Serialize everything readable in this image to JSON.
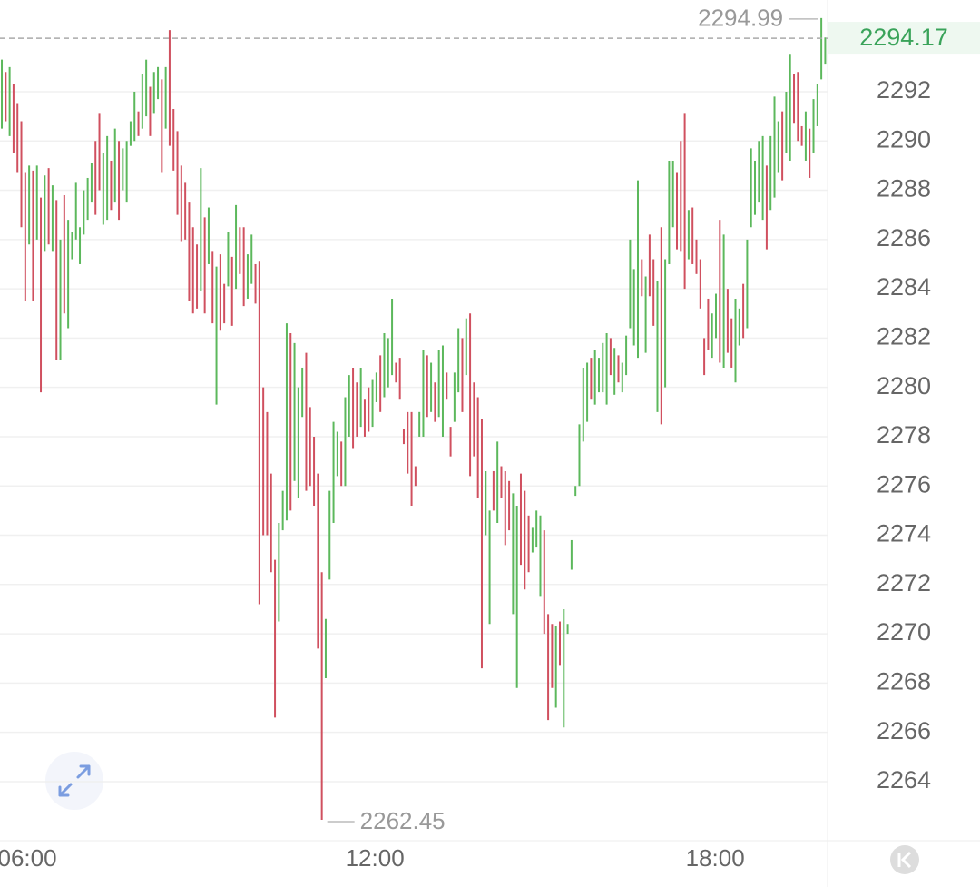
{
  "chart_data": {
    "type": "candlestick",
    "up_color": "#5cb85c",
    "down_color": "#d0505f",
    "ylim": [
      2261.64,
      2295.72
    ],
    "yticks": [
      2264,
      2266,
      2268,
      2270,
      2272,
      2274,
      2276,
      2278,
      2280,
      2282,
      2284,
      2286,
      2288,
      2290,
      2292
    ],
    "xlim": [
      -0.47,
      211.6
    ],
    "xticks": [
      {
        "value": 6.51,
        "label": "06:00"
      },
      {
        "value": 95.6,
        "label": "12:00"
      },
      {
        "value": 182.8,
        "label": "18:00"
      }
    ],
    "grid": true,
    "last_price": 2294.17,
    "max_index": 210,
    "min_index": 82,
    "high": [
      2293.3,
      2292.8,
      2293.0,
      2292.3,
      2291.5,
      2290.8,
      2288.7,
      2289.0,
      2288.8,
      2289.0,
      2287.7,
      2288.6,
      2288.9,
      2288.2,
      2287.6,
      2286.0,
      2287.8,
      2286.8,
      2286.3,
      2288.3,
      2286.5,
      2288.0,
      2288.5,
      2289.1,
      2290.0,
      2291.1,
      2289.5,
      2290.2,
      2289.2,
      2290.5,
      2290.0,
      2289.7,
      2290.0,
      2290.8,
      2292.0,
      2291.2,
      2292.7,
      2293.3,
      2292.2,
      2292.8,
      2293.0,
      2292.5,
      2293.0,
      2294.5,
      2291.3,
      2290.4,
      2289.0,
      2288.3,
      2287.5,
      2286.5,
      2285.8,
      2288.9,
      2286.9,
      2287.3,
      2285.5,
      2284.9,
      2285.4,
      2284.2,
      2286.3,
      2285.3,
      2287.4,
      2286.5,
      2286.5,
      2285.4,
      2286.2,
      2285.0,
      2285.1,
      2280.0,
      2279.0,
      2276.5,
      2273.0,
      2274.5,
      2275.8,
      2282.6,
      2282.2,
      2281.8,
      2280.0,
      2280.8,
      2281.4,
      2279.2,
      2278.0,
      2276.5,
      2272.5,
      2270.6,
      2275.8,
      2278.6,
      2278.2,
      2277.8,
      2279.6,
      2280.5,
      2280.8,
      2280.2,
      2280.8,
      2279.5,
      2280.0,
      2280.3,
      2280.6,
      2281.3,
      2282.2,
      2282.0,
      2283.6,
      2281.0,
      2281.2,
      2278.3,
      2279.0,
      2279.0,
      2276.8,
      2279.0,
      2281.5,
      2281.3,
      2281.0,
      2280.2,
      2281.5,
      2281.7,
      2280.6,
      2278.4,
      2280.6,
      2282.4,
      2282.0,
      2282.8,
      2283.0,
      2280.2,
      2279.6,
      2278.7,
      2276.6,
      2275.0,
      2276.6,
      2277.8,
      2276.8,
      2276.6,
      2276.2,
      2275.7,
      2275.2,
      2276.5,
      2275.8,
      2274.8,
      2274.3,
      2275.0,
      2274.8,
      2274.2,
      2270.8,
      2270.4,
      2270.3,
      2270.5,
      2271.0,
      2270.4,
      2273.8,
      2276.0,
      2278.5,
      2280.8,
      2281.0,
      2281.2,
      2281.5,
      2281.2,
      2281.8,
      2282.2,
      2282.0,
      2281.6,
      2281.3,
      2281.0,
      2282.1,
      2286.0,
      2284.8,
      2288.4,
      2285.2,
      2284.5,
      2286.2,
      2285.2,
      2284.3,
      2286.5,
      2285.2,
      2289.2,
      2289.2,
      2288.7,
      2290.0,
      2291.1,
      2287.2,
      2287.3,
      2286.0,
      2285.2,
      2282.0,
      2283.6,
      2283.0,
      2283.8,
      2286.8,
      2286.2,
      2284.0,
      2282.8,
      2283.6,
      2283.2,
      2284.2,
      2286.0,
      2289.7,
      2289.2,
      2290.0,
      2290.2,
      2289.0,
      2290.2,
      2291.8,
      2290.8,
      2291.2,
      2292.0,
      2293.5,
      2292.7,
      2292.8,
      2290.6,
      2291.2,
      2290.5,
      2291.7,
      2292.3,
      2294.99,
      2294.2
    ],
    "low": [
      2290.5,
      2290.8,
      2290.2,
      2289.5,
      2288.7,
      2286.5,
      2283.5,
      2285.8,
      2283.5,
      2286.0,
      2279.8,
      2285.5,
      2285.8,
      2285.5,
      2281.1,
      2281.1,
      2283.0,
      2282.4,
      2285.2,
      2286.0,
      2285.0,
      2286.2,
      2286.8,
      2287.5,
      2287.0,
      2288.0,
      2286.6,
      2286.8,
      2287.2,
      2287.5,
      2286.8,
      2288.0,
      2287.5,
      2289.8,
      2290.0,
      2290.2,
      2290.5,
      2291.0,
      2290.2,
      2291.1,
      2291.7,
      2288.7,
      2290.5,
      2289.8,
      2288.8,
      2287.0,
      2285.9,
      2286.0,
      2283.5,
      2283.0,
      2283.2,
      2283.9,
      2283.0,
      2285.0,
      2282.6,
      2279.3,
      2282.3,
      2282.6,
      2284.1,
      2282.5,
      2284.0,
      2284.6,
      2283.3,
      2283.6,
      2284.2,
      2283.4,
      2271.2,
      2274.0,
      2274.0,
      2272.5,
      2266.6,
      2270.5,
      2274.2,
      2274.6,
      2275.0,
      2276.2,
      2275.5,
      2278.8,
      2275.8,
      2276.0,
      2275.2,
      2269.4,
      2262.45,
      2268.2,
      2272.2,
      2274.5,
      2276.4,
      2276.0,
      2276.0,
      2278.0,
      2277.5,
      2278.0,
      2278.4,
      2278.0,
      2278.2,
      2278.4,
      2279.4,
      2279.0,
      2279.6,
      2280.0,
      2280.5,
      2280.2,
      2279.5,
      2277.7,
      2276.5,
      2275.2,
      2276.0,
      2278.0,
      2278.0,
      2278.8,
      2279.0,
      2278.6,
      2278.8,
      2278.0,
      2279.5,
      2277.2,
      2278.6,
      2279.8,
      2279.0,
      2280.5,
      2276.4,
      2277.2,
      2275.5,
      2268.6,
      2274.0,
      2270.4,
      2275.0,
      2274.5,
      2275.5,
      2273.6,
      2274.2,
      2270.8,
      2267.8,
      2272.8,
      2271.8,
      2272.5,
      2273.3,
      2273.5,
      2271.5,
      2270.0,
      2266.5,
      2267.8,
      2267.0,
      2268.7,
      2266.2,
      2270.0,
      2272.6,
      2275.6,
      2276.0,
      2277.8,
      2278.6,
      2279.5,
      2279.3,
      2279.8,
      2279.8,
      2279.3,
      2280.5,
      2279.7,
      2280.2,
      2279.8,
      2280.5,
      2282.4,
      2281.7,
      2281.2,
      2283.7,
      2281.4,
      2283.7,
      2282.5,
      2279.0,
      2278.5,
      2280.0,
      2285.0,
      2286.5,
      2285.6,
      2285.5,
      2284.0,
      2285.2,
      2285.0,
      2284.6,
      2283.2,
      2280.5,
      2281.5,
      2281.2,
      2282.0,
      2281.0,
      2280.8,
      2281.4,
      2280.8,
      2280.2,
      2281.7,
      2282.0,
      2282.4,
      2286.5,
      2287.0,
      2287.5,
      2286.8,
      2285.6,
      2287.2,
      2287.7,
      2288.7,
      2288.4,
      2289.5,
      2289.2,
      2290.7,
      2290.0,
      2289.8,
      2289.2,
      2288.5,
      2289.5,
      2290.6,
      2292.5,
      2293.1
    ],
    "up": [
      1,
      0,
      1,
      0,
      0,
      0,
      0,
      1,
      0,
      1,
      0,
      1,
      0,
      1,
      0,
      1,
      0,
      1,
      1,
      1,
      1,
      1,
      1,
      1,
      0,
      0,
      1,
      1,
      0,
      1,
      0,
      1,
      1,
      1,
      1,
      0,
      1,
      1,
      0,
      1,
      1,
      0,
      1,
      0,
      0,
      0,
      0,
      0,
      0,
      0,
      0,
      1,
      0,
      1,
      0,
      1,
      0,
      0,
      1,
      0,
      1,
      0,
      0,
      1,
      1,
      0,
      0,
      0,
      0,
      0,
      0,
      1,
      1,
      1,
      0,
      1,
      1,
      1,
      0,
      0,
      0,
      0,
      0,
      1,
      1,
      1,
      1,
      0,
      1,
      1,
      0,
      0,
      1,
      0,
      0,
      1,
      1,
      0,
      1,
      1,
      1,
      0,
      0,
      0,
      0,
      0,
      0,
      1,
      1,
      0,
      1,
      0,
      1,
      1,
      0,
      0,
      1,
      1,
      0,
      1,
      0,
      0,
      0,
      0,
      1,
      1,
      0,
      1,
      0,
      0,
      0,
      1,
      1,
      0,
      0,
      0,
      1,
      1,
      1,
      0,
      0,
      0,
      1,
      0,
      1,
      1,
      1,
      1,
      1,
      1,
      1,
      0,
      1,
      1,
      1,
      1,
      0,
      1,
      0,
      1,
      1,
      1,
      1,
      1,
      0,
      1,
      0,
      0,
      1,
      0,
      1,
      1,
      1,
      0,
      0,
      0,
      1,
      0,
      0,
      0,
      0,
      0,
      1,
      1,
      0,
      1,
      0,
      0,
      1,
      1,
      0,
      1,
      1,
      1,
      1,
      1,
      0,
      1,
      1,
      1,
      0,
      1,
      1,
      0,
      0,
      0,
      1,
      0,
      1,
      1,
      1,
      1
    ]
  }
}
